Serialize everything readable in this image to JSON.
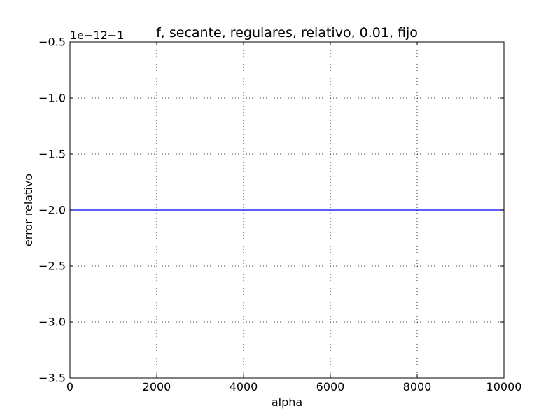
{
  "chart_data": {
    "type": "line",
    "title": "f, secante, regulares, relativo, 0.01, fijo",
    "xlabel": "alpha",
    "ylabel": "error relativo",
    "offset_text": "1e−12−1",
    "xlim": [
      0,
      10000
    ],
    "ylim": [
      -3.5,
      -0.5
    ],
    "xticks": [
      0,
      2000,
      4000,
      6000,
      8000,
      10000
    ],
    "xtick_labels": [
      "0",
      "2000",
      "4000",
      "6000",
      "8000",
      "10000"
    ],
    "yticks": [
      -0.5,
      -1.0,
      -1.5,
      -2.0,
      -2.5,
      -3.0,
      -3.5
    ],
    "ytick_labels": [
      "−0.5",
      "−1.0",
      "−1.5",
      "−2.0",
      "−2.5",
      "−3.0",
      "−3.5"
    ],
    "grid": true,
    "series": [
      {
        "color": "#0000ff",
        "x": [
          0,
          10000
        ],
        "y": [
          -2.0,
          -2.0
        ]
      }
    ]
  }
}
